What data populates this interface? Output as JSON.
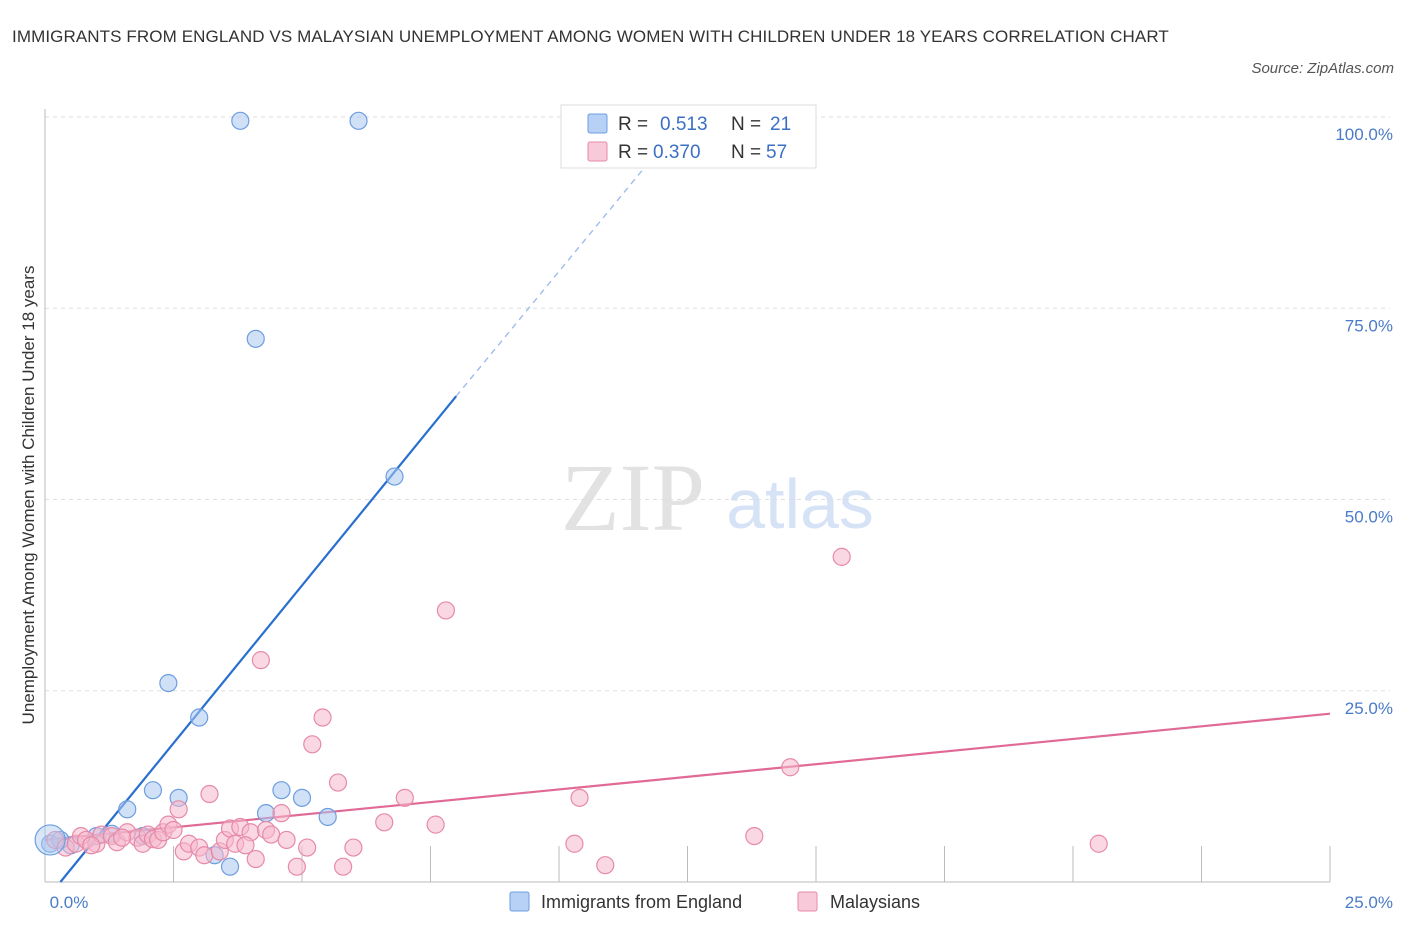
{
  "title": "IMMIGRANTS FROM ENGLAND VS MALAYSIAN UNEMPLOYMENT AMONG WOMEN WITH CHILDREN UNDER 18 YEARS CORRELATION CHART",
  "source": "Source: ZipAtlas.com",
  "watermark": {
    "zip": "ZIP",
    "atlas": "atlas"
  },
  "legend_top": {
    "rows": [
      {
        "r_label": "R =",
        "r_value": "0.513",
        "n_label": "N =",
        "n_value": "21",
        "color": "#a9c7f0"
      },
      {
        "r_label": "R =",
        "r_value": "0.370",
        "n_label": "N =",
        "n_value": "57",
        "color": "#f5b8cc"
      }
    ]
  },
  "chart_data": {
    "type": "scatter",
    "ylabel": "Unemployment Among Women with Children Under 18 years",
    "xlim": [
      0,
      25
    ],
    "ylim": [
      0,
      100
    ],
    "x_tick_labels": [
      "0.0%",
      "25.0%"
    ],
    "y_tick_labels": [
      "25.0%",
      "50.0%",
      "75.0%",
      "100.0%"
    ],
    "y_ticks": [
      25,
      50,
      75,
      100
    ],
    "grid": true,
    "series": [
      {
        "name": "Immigrants from England",
        "color": "#a9c7f0",
        "stroke": "#6d9ee0",
        "line_color": "#2a6fcf",
        "trend": {
          "x0": 0.3,
          "y0": 0.0,
          "x1": 8.0,
          "y1": 63.5,
          "dash_x1": 11.8,
          "dash_y1": 94.5
        },
        "points": [
          [
            0.1,
            5.0
          ],
          [
            0.5,
            4.8
          ],
          [
            1.0,
            6.0
          ],
          [
            1.3,
            6.3
          ],
          [
            1.6,
            9.5
          ],
          [
            1.9,
            6.0
          ],
          [
            2.1,
            12.0
          ],
          [
            2.4,
            26.0
          ],
          [
            2.6,
            11.0
          ],
          [
            3.0,
            21.5
          ],
          [
            3.3,
            3.5
          ],
          [
            3.6,
            2.0
          ],
          [
            3.8,
            99.5
          ],
          [
            4.1,
            71.0
          ],
          [
            4.3,
            9.0
          ],
          [
            4.6,
            12.0
          ],
          [
            5.0,
            11.0
          ],
          [
            5.5,
            8.5
          ],
          [
            6.1,
            99.5
          ],
          [
            6.8,
            53.0
          ],
          [
            0.3,
            5.5
          ]
        ]
      },
      {
        "name": "Malaysians",
        "color": "#f5b8cc",
        "stroke": "#e68aa8",
        "line_color": "#e06a95",
        "trend": {
          "x0": 0.0,
          "y0": 5.5,
          "x1": 25.0,
          "y1": 22.0
        },
        "points": [
          [
            0.2,
            5.5
          ],
          [
            0.4,
            4.5
          ],
          [
            0.6,
            5.0
          ],
          [
            0.7,
            6.0
          ],
          [
            0.8,
            5.5
          ],
          [
            1.0,
            5.0
          ],
          [
            1.1,
            6.2
          ],
          [
            1.3,
            6.0
          ],
          [
            1.4,
            5.2
          ],
          [
            1.6,
            6.5
          ],
          [
            1.8,
            5.8
          ],
          [
            1.9,
            5.0
          ],
          [
            2.0,
            6.2
          ],
          [
            2.1,
            5.6
          ],
          [
            2.2,
            5.5
          ],
          [
            2.3,
            6.5
          ],
          [
            2.4,
            7.5
          ],
          [
            2.5,
            6.8
          ],
          [
            2.6,
            9.5
          ],
          [
            2.7,
            4.0
          ],
          [
            2.8,
            5.0
          ],
          [
            3.0,
            4.5
          ],
          [
            3.1,
            3.5
          ],
          [
            3.2,
            11.5
          ],
          [
            3.4,
            4.0
          ],
          [
            3.5,
            5.5
          ],
          [
            3.6,
            7.0
          ],
          [
            3.7,
            5.0
          ],
          [
            3.8,
            7.2
          ],
          [
            4.0,
            6.5
          ],
          [
            4.1,
            3.0
          ],
          [
            4.2,
            29.0
          ],
          [
            4.3,
            6.8
          ],
          [
            4.4,
            6.2
          ],
          [
            4.6,
            9.0
          ],
          [
            4.7,
            5.5
          ],
          [
            4.9,
            2.0
          ],
          [
            5.1,
            4.5
          ],
          [
            5.2,
            18.0
          ],
          [
            5.4,
            21.5
          ],
          [
            5.7,
            13.0
          ],
          [
            5.8,
            2.0
          ],
          [
            6.0,
            4.5
          ],
          [
            7.0,
            11.0
          ],
          [
            7.6,
            7.5
          ],
          [
            7.8,
            35.5
          ],
          [
            10.3,
            5.0
          ],
          [
            10.4,
            11.0
          ],
          [
            10.9,
            2.2
          ],
          [
            13.8,
            6.0
          ],
          [
            14.5,
            15.0
          ],
          [
            15.5,
            42.5
          ],
          [
            20.5,
            5.0
          ],
          [
            0.9,
            4.8
          ],
          [
            1.5,
            5.8
          ],
          [
            3.9,
            4.8
          ],
          [
            6.6,
            7.8
          ]
        ]
      }
    ]
  },
  "legend_bottom": [
    {
      "label": "Immigrants from England",
      "color": "#a9c7f0",
      "stroke": "#6d9ee0"
    },
    {
      "label": "Malaysians",
      "color": "#f5b8cc",
      "stroke": "#e68aa8"
    }
  ]
}
